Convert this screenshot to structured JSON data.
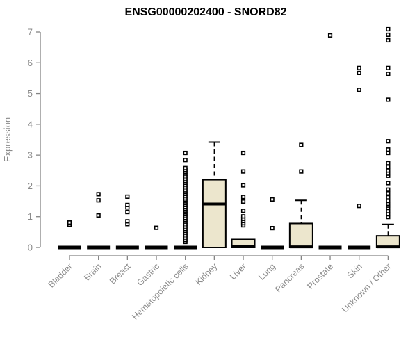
{
  "figure": {
    "background": "#ffffff"
  },
  "chart_data": {
    "type": "boxplot",
    "title": "ENSG00000202400 - SNORD82",
    "xlabel": "",
    "ylabel": "Expression",
    "ylim": [
      0,
      7
    ],
    "yticks": [
      0,
      1,
      2,
      3,
      4,
      5,
      6,
      7
    ],
    "grid": false,
    "legend": "none",
    "categories": [
      "Bladder",
      "Brain",
      "Breast",
      "Gastric",
      "Hematopoietic cells",
      "Kidney",
      "Liver",
      "Lung",
      "Pancreas",
      "Prostate",
      "Skin",
      "Unknown / Other"
    ],
    "boxes": [
      {
        "category": "Bladder",
        "q1": 0,
        "median": 0,
        "q3": 0,
        "whisker_low": 0,
        "whisker_high": 0,
        "outliers": [
          0.74,
          0.81
        ]
      },
      {
        "category": "Brain",
        "q1": 0,
        "median": 0,
        "q3": 0,
        "whisker_low": 0,
        "whisker_high": 0,
        "outliers": [
          1.04,
          1.53,
          1.73
        ]
      },
      {
        "category": "Breast",
        "q1": 0,
        "median": 0,
        "q3": 0,
        "whisker_low": 0,
        "whisker_high": 0,
        "outliers": [
          0.76,
          0.85,
          1.15,
          1.3,
          1.38,
          1.65
        ]
      },
      {
        "category": "Gastric",
        "q1": 0,
        "median": 0,
        "q3": 0,
        "whisker_low": 0,
        "whisker_high": 0,
        "outliers": [
          0.64
        ]
      },
      {
        "category": "Hematopoietic cells",
        "q1": 0,
        "median": 0,
        "q3": 0,
        "whisker_low": 0,
        "whisker_high": 0,
        "outliers": [
          0.18,
          0.24,
          0.3,
          0.36,
          0.42,
          0.48,
          0.54,
          0.6,
          0.66,
          0.72,
          0.78,
          0.84,
          0.9,
          0.96,
          1.02,
          1.08,
          1.14,
          1.2,
          1.26,
          1.32,
          1.38,
          1.44,
          1.5,
          1.56,
          1.62,
          1.68,
          1.74,
          1.8,
          1.86,
          1.92,
          1.98,
          2.04,
          2.1,
          2.16,
          2.22,
          2.28,
          2.34,
          2.4,
          2.46,
          2.52,
          2.58,
          2.84,
          3.07
        ]
      },
      {
        "category": "Kidney",
        "q1": 0,
        "median": 1.41,
        "q3": 2.2,
        "whisker_low": 0,
        "whisker_high": 3.42,
        "outliers": []
      },
      {
        "category": "Liver",
        "q1": 0,
        "median": 0.03,
        "q3": 0.26,
        "whisker_low": 0,
        "whisker_high": 0.26,
        "outliers": [
          0.72,
          0.79,
          0.86,
          0.93,
          1.01,
          1.19,
          1.49,
          1.64,
          2.02,
          2.47,
          3.07
        ]
      },
      {
        "category": "Lung",
        "q1": 0,
        "median": 0,
        "q3": 0,
        "whisker_low": 0,
        "whisker_high": 0,
        "outliers": [
          0.63,
          1.56
        ]
      },
      {
        "category": "Pancreas",
        "q1": 0,
        "median": 0.02,
        "q3": 0.78,
        "whisker_low": 0,
        "whisker_high": 1.53,
        "outliers": [
          2.47,
          3.33
        ]
      },
      {
        "category": "Prostate",
        "q1": 0,
        "median": 0,
        "q3": 0,
        "whisker_low": 0,
        "whisker_high": 0,
        "outliers": [
          6.89
        ]
      },
      {
        "category": "Skin",
        "q1": 0,
        "median": 0,
        "q3": 0,
        "whisker_low": 0,
        "whisker_high": 0,
        "outliers": [
          1.35,
          5.12,
          5.67,
          5.83
        ]
      },
      {
        "category": "Unknown / Other",
        "q1": 0,
        "median": 0.02,
        "q3": 0.38,
        "whisker_low": 0,
        "whisker_high": 0.75,
        "outliers": [
          0.99,
          1.08,
          1.18,
          1.3,
          1.36,
          1.42,
          1.51,
          1.63,
          1.76,
          1.88,
          2.09,
          2.33,
          2.4,
          2.5,
          2.62,
          2.74,
          3.07,
          3.18,
          3.45,
          4.8,
          5.64,
          5.83,
          6.73,
          6.91,
          7.09
        ]
      }
    ],
    "colors": {
      "box_fill": "#ECE6CD",
      "box_stroke": "#000000",
      "median": "#000000",
      "outlier_stroke": "#000000",
      "outlier_fill": "#ffffff",
      "axis": "#848484",
      "tick_text": "#8b8b8b",
      "title_text": "#000000"
    }
  }
}
